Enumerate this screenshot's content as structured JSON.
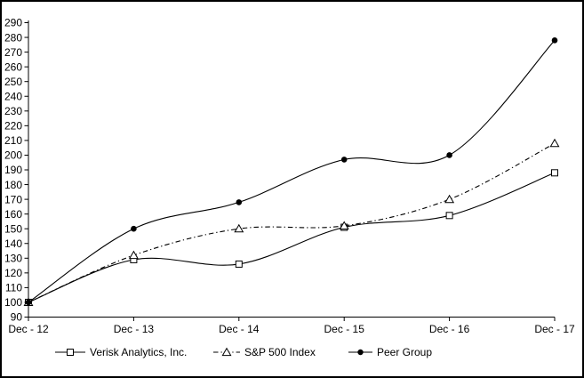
{
  "chart_data": {
    "type": "line",
    "title": "",
    "xlabel": "",
    "ylabel": "",
    "categories": [
      "Dec - 12",
      "Dec - 13",
      "Dec - 14",
      "Dec - 15",
      "Dec - 16",
      "Dec - 17"
    ],
    "series": [
      {
        "name": "Verisk Analytics, Inc.",
        "values": [
          100,
          129,
          126,
          151,
          159,
          188
        ],
        "marker": "square-open-icon",
        "line_style": "solid"
      },
      {
        "name": "S&P 500 Index",
        "values": [
          100,
          132,
          150,
          152,
          170,
          208
        ],
        "marker": "triangle-open-icon",
        "line_style": "dash-dot"
      },
      {
        "name": "Peer Group",
        "values": [
          100,
          150,
          168,
          197,
          200,
          278
        ],
        "marker": "circle-filled-icon",
        "line_style": "solid"
      }
    ],
    "ylim": [
      90,
      290
    ],
    "y_ticks": [
      90,
      100,
      110,
      120,
      130,
      140,
      150,
      160,
      170,
      180,
      190,
      200,
      210,
      220,
      230,
      240,
      250,
      260,
      270,
      280,
      290
    ],
    "grid": false,
    "legend_position": "bottom",
    "colors": {
      "line": "#000000",
      "background": "#ffffff",
      "border": "#000000",
      "marker_fill_open": "#ffffff"
    }
  }
}
